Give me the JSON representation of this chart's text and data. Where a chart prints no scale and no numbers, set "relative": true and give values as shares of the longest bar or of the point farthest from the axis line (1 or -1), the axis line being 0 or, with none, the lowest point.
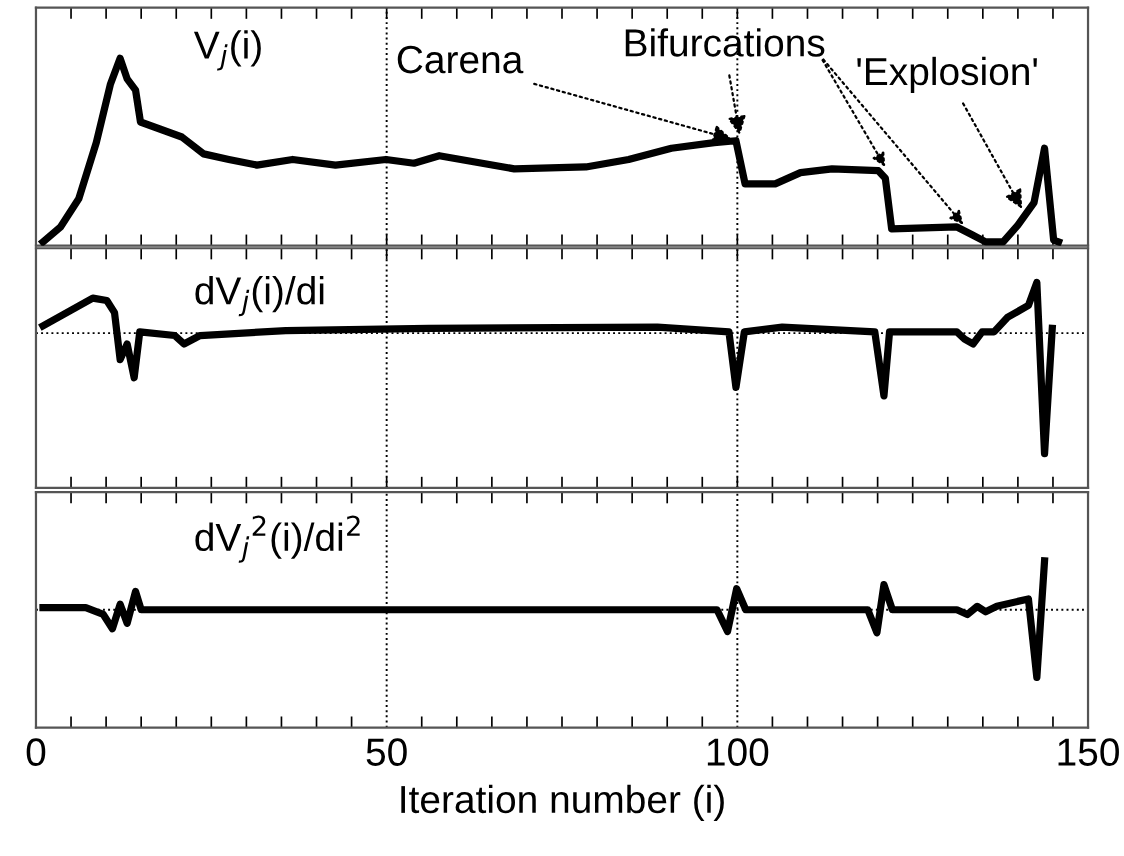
{
  "chart_data": [
    {
      "type": "line",
      "title": "V$_{j}$(i)",
      "relative": true,
      "xlim": [
        0,
        150
      ],
      "tick_labels": false,
      "grid": false,
      "line_style": "solid",
      "ref_lines": [
        {
          "axis": "x",
          "value": 50
        },
        {
          "axis": "x",
          "value": 100
        }
      ],
      "annotations": [
        {
          "text": "Carena",
          "x": 100,
          "y": 0.56
        },
        {
          "text": "Bifurcations",
          "x": 100.5,
          "y": 0.56
        },
        {
          "text": "'Explosion'",
          "x": 141,
          "y": 0.17
        }
      ],
      "series": [
        {
          "color": "#000000",
          "x": [
            1,
            3.5,
            6.1,
            8.6,
            10.6,
            12,
            13,
            14.2,
            14.9,
            20.8,
            23.9,
            27.5,
            31.5,
            36.6,
            42.7,
            49.9,
            53.9,
            57.5,
            68.2,
            78.4,
            84.5,
            90.6,
            96.7,
            99.8,
            101.1,
            105.4,
            109,
            113.5,
            120.1,
            121.1,
            122,
            131.3,
            133.4,
            135.4,
            137.9,
            140,
            142.3,
            143.8,
            145.1,
            145.8
          ],
          "values": [
            0.02,
            0.1,
            0.25,
            0.55,
            0.86,
            1.0,
            0.89,
            0.83,
            0.66,
            0.58,
            0.49,
            0.46,
            0.43,
            0.46,
            0.43,
            0.46,
            0.44,
            0.48,
            0.41,
            0.42,
            0.46,
            0.52,
            0.55,
            0.56,
            0.33,
            0.33,
            0.39,
            0.41,
            0.4,
            0.36,
            0.09,
            0.1,
            0.06,
            0.02,
            0.02,
            0.11,
            0.23,
            0.52,
            0.03,
            0.02
          ]
        }
      ]
    },
    {
      "type": "line",
      "title": "dV$_{j}$(i)/di",
      "relative": true,
      "xlim": [
        0,
        150
      ],
      "tick_labels": false,
      "grid": false,
      "line_style": "solid",
      "ref_lines": [
        {
          "axis": "x",
          "value": 50
        },
        {
          "axis": "x",
          "value": 100
        },
        {
          "axis": "y",
          "value": 0
        }
      ],
      "series": [
        {
          "color": "#000000",
          "x": [
            1,
            8.1,
            10.1,
            11.2,
            12,
            13,
            14,
            14.8,
            19.8,
            21.1,
            23.4,
            35.6,
            56,
            88.6,
            98.8,
            99.8,
            101,
            106.4,
            119.6,
            120.9,
            121.7,
            131.3,
            132.4,
            133.6,
            134.9,
            136.6,
            138.5,
            141.5,
            142.7,
            143.8,
            144.9
          ],
          "values": [
            0.06,
            0.29,
            0.27,
            0.17,
            -0.22,
            -0.09,
            -0.37,
            0.01,
            -0.02,
            -0.09,
            -0.02,
            0.02,
            0.04,
            0.05,
            0.01,
            -0.45,
            0.01,
            0.05,
            0.01,
            -0.52,
            0.01,
            0.01,
            -0.05,
            -0.09,
            0.01,
            0.01,
            0.13,
            0.23,
            0.42,
            -1.0,
            0.04
          ]
        }
      ]
    },
    {
      "type": "line",
      "title": "dV$_{j}$$^{2}$(i)/di$^{2}$",
      "relative": true,
      "xlim": [
        0,
        150
      ],
      "xticks": [
        0,
        50,
        100,
        150
      ],
      "xlabel": "Iteration number (i)",
      "tick_labels": "x",
      "grid": false,
      "line_style": "solid",
      "ref_lines": [
        {
          "axis": "x",
          "value": 50
        },
        {
          "axis": "x",
          "value": 100
        },
        {
          "axis": "y",
          "value": 0
        }
      ],
      "series": [
        {
          "color": "#000000",
          "x": [
            1,
            7.1,
            9.6,
            10.9,
            12,
            13,
            14.2,
            15,
            97.1,
            98.6,
            99.9,
            101.2,
            118.6,
            119.9,
            120.9,
            122.1,
            131.3,
            132.8,
            134.2,
            135.4,
            137,
            141.5,
            142.7,
            143.8
          ],
          "values": [
            0.03,
            0.03,
            -0.07,
            -0.28,
            0.08,
            -0.2,
            0.27,
            0,
            0,
            -0.32,
            0.31,
            0,
            0,
            -0.34,
            0.37,
            0,
            0,
            -0.07,
            0.05,
            -0.03,
            0.05,
            0.16,
            -1.0,
            0.72
          ]
        }
      ]
    }
  ]
}
